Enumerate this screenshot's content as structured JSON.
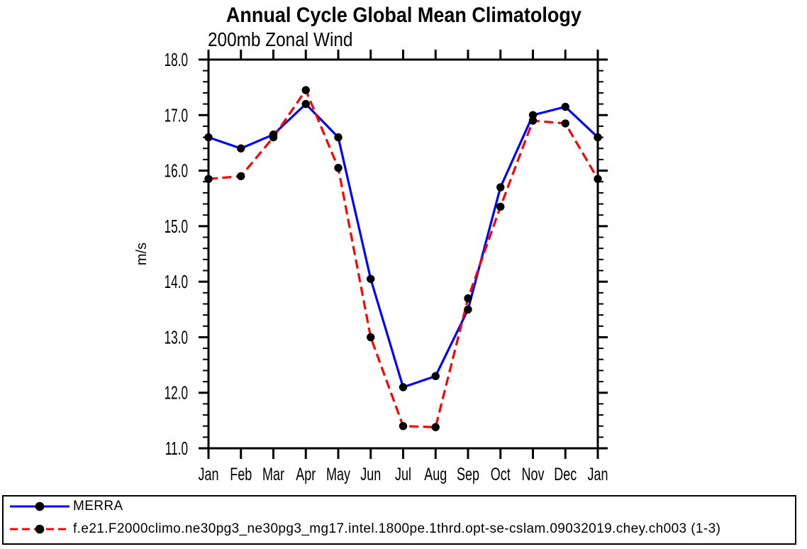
{
  "page": {
    "background": "#ffffff",
    "text_color": "#000000"
  },
  "chart_data": {
    "type": "line",
    "title": "Annual Cycle Global Mean Climatology",
    "subtitle": "200mb Zonal Wind",
    "ylabel": "m/s",
    "xlabel": "",
    "categories": [
      "Jan",
      "Feb",
      "Mar",
      "Apr",
      "May",
      "Jun",
      "Jul",
      "Aug",
      "Sep",
      "Oct",
      "Nov",
      "Dec",
      "Jan"
    ],
    "ylim": [
      11.0,
      18.0
    ],
    "ytick_interval": 1.0,
    "yminor_interval": 0.2,
    "ytick_labels": [
      "11.0",
      "12.0",
      "13.0",
      "14.0",
      "15.0",
      "16.0",
      "17.0",
      "18.0"
    ],
    "grid": false,
    "ticks": "outward-all-sides",
    "axis_color": "#000000",
    "marker": "filled-circle",
    "marker_color": "#000000",
    "legend_position": "bottom-outside-boxed",
    "series": [
      {
        "name": "MERRA",
        "color": "#0000ff",
        "line_style": "solid",
        "values": [
          16.6,
          16.4,
          16.65,
          17.2,
          16.6,
          14.05,
          12.1,
          12.3,
          13.5,
          15.7,
          17.0,
          17.15,
          16.6
        ]
      },
      {
        "name": "f.e21.F2000climo.ne30pg3_ne30pg3_mg17.intel.1800pe.1thrd.opt-se-cslam.09032019.chey.ch003 (1-3)",
        "color": "#ff0000",
        "line_style": "dashed",
        "values": [
          15.85,
          15.9,
          16.6,
          17.45,
          16.05,
          13.0,
          11.4,
          11.38,
          13.7,
          15.35,
          16.9,
          16.85,
          15.85
        ]
      }
    ]
  }
}
